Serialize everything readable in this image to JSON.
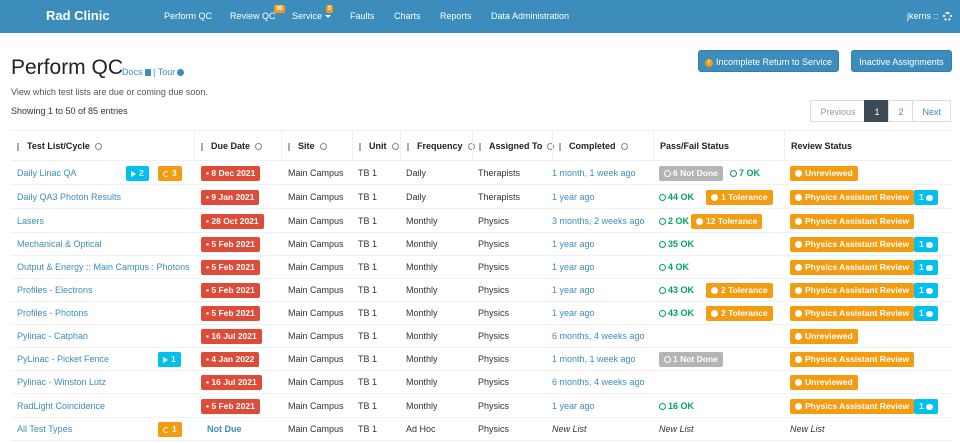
{
  "navbar": {
    "brand": "Rad Clinic",
    "items": [
      {
        "label": "Perform QC"
      },
      {
        "label": "Review QC",
        "badge": "30"
      },
      {
        "label": "Service",
        "badge": "3"
      },
      {
        "label": "Faults"
      },
      {
        "label": "Charts"
      },
      {
        "label": "Reports"
      },
      {
        "label": "Data Administration"
      }
    ],
    "user": "jkerns ::"
  },
  "page": {
    "title": "Perform QC",
    "docs": "Docs",
    "separator": "|",
    "tour": "Tour",
    "subtitle": "View which test lists are due or coming due soon.",
    "showing": "Showing 1 to 50 of 85 entries"
  },
  "buttons": {
    "incomplete": "Incomplete Return to Service",
    "incomplete_icon": "!",
    "inactive": "Inactive Assignments"
  },
  "pager": {
    "previous": "Previous",
    "pages": [
      "1",
      "2"
    ],
    "next": "Next"
  },
  "columns": {
    "testlist": "Test List/Cycle",
    "due": "Due Date",
    "site": "Site",
    "unit": "Unit",
    "frequency": "Frequency",
    "assigned": "Assigned To",
    "completed": "Completed",
    "passfail": "Pass/Fail Status",
    "review": "Review Status"
  },
  "rows": [
    {
      "name": "Daily Linac QA",
      "inprog": "2",
      "unrev": "3",
      "due": "8 Dec 2021",
      "site": "Main Campus",
      "unit": "TB 1",
      "freq": "Daily",
      "assigned": "Therapists",
      "completed": "1 month, 1 week ago",
      "notdone": "6 Not Done",
      "ok": "7 OK",
      "review": "Unreviewed"
    },
    {
      "name": "Daily QA3 Photon Results",
      "due": "9 Jan 2021",
      "site": "Main Campus",
      "unit": "TB 1",
      "freq": "Daily",
      "assigned": "Therapists",
      "completed": "1 year ago",
      "ok": "44 OK",
      "tol": "1 Tolerance",
      "review": "Physics Assistant Review",
      "comments": "1"
    },
    {
      "name": "Lasers",
      "due": "28 Oct 2021",
      "site": "Main Campus",
      "unit": "TB 1",
      "freq": "Monthly",
      "assigned": "Physics",
      "completed": "3 months, 2 weeks ago",
      "ok": "2 OK",
      "tol": "12 Tolerance",
      "review": "Physics Assistant Review"
    },
    {
      "name": "Mechanical & Optical",
      "due": "5 Feb 2021",
      "site": "Main Campus",
      "unit": "TB 1",
      "freq": "Monthly",
      "assigned": "Physics",
      "completed": "1 year ago",
      "ok": "35 OK",
      "review": "Physics Assistant Review",
      "comments": "1"
    },
    {
      "name": "Output & Energy :: Main Campus : Photons",
      "due": "5 Feb 2021",
      "site": "Main Campus",
      "unit": "TB 1",
      "freq": "Monthly",
      "assigned": "Physics",
      "completed": "1 year ago",
      "ok": "4 OK",
      "review": "Physics Assistant Review",
      "comments": "1"
    },
    {
      "name": "Profiles - Electrons",
      "due": "5 Feb 2021",
      "site": "Main Campus",
      "unit": "TB 1",
      "freq": "Monthly",
      "assigned": "Physics",
      "completed": "1 year ago",
      "ok": "43 OK",
      "tol": "2 Tolerance",
      "review": "Physics Assistant Review",
      "comments": "1"
    },
    {
      "name": "Profiles - Photons",
      "due": "5 Feb 2021",
      "site": "Main Campus",
      "unit": "TB 1",
      "freq": "Monthly",
      "assigned": "Physics",
      "completed": "1 year ago",
      "ok": "43 OK",
      "tol": "2 Tolerance",
      "review": "Physics Assistant Review",
      "comments": "1"
    },
    {
      "name": "Pylinac - Catphan",
      "due": "16 Jul 2021",
      "site": "Main Campus",
      "unit": "TB 1",
      "freq": "Monthly",
      "assigned": "Physics",
      "completed": "6 months, 4 weeks ago",
      "review": "Unreviewed"
    },
    {
      "name": "PyLinac - Picket Fence",
      "inprog": "1",
      "due": "4 Jan 2022",
      "site": "Main Campus",
      "unit": "TB 1",
      "freq": "Monthly",
      "assigned": "Physics",
      "completed": "1 month, 1 week ago",
      "notdone": "1 Not Done",
      "review": "Physics Assistant Review"
    },
    {
      "name": "Pylinac - Winston Lutz",
      "due": "16 Jul 2021",
      "site": "Main Campus",
      "unit": "TB 1",
      "freq": "Monthly",
      "assigned": "Physics",
      "completed": "6 months, 4 weeks ago",
      "review": "Unreviewed"
    },
    {
      "name": "RadLight Coincidence",
      "due": "5 Feb 2021",
      "site": "Main Campus",
      "unit": "TB 1",
      "freq": "Monthly",
      "assigned": "Physics",
      "completed": "1 year ago",
      "ok": "16 OK",
      "review": "Physics Assistant Review",
      "comments": "1"
    },
    {
      "name": "All Test Types",
      "unrev": "1",
      "dueplain": "Not Due",
      "site": "Main Campus",
      "unit": "TB 1",
      "freq": "Ad Hoc",
      "assigned": "Physics",
      "completed_plain": "New List",
      "passfail_plain": "New List",
      "review_plain": "New List"
    }
  ],
  "colors": {
    "navbar": "#3c8dbc",
    "danger": "#dd4b39",
    "warning": "#f39c12",
    "info": "#00c0ef",
    "success": "#00a65a"
  }
}
